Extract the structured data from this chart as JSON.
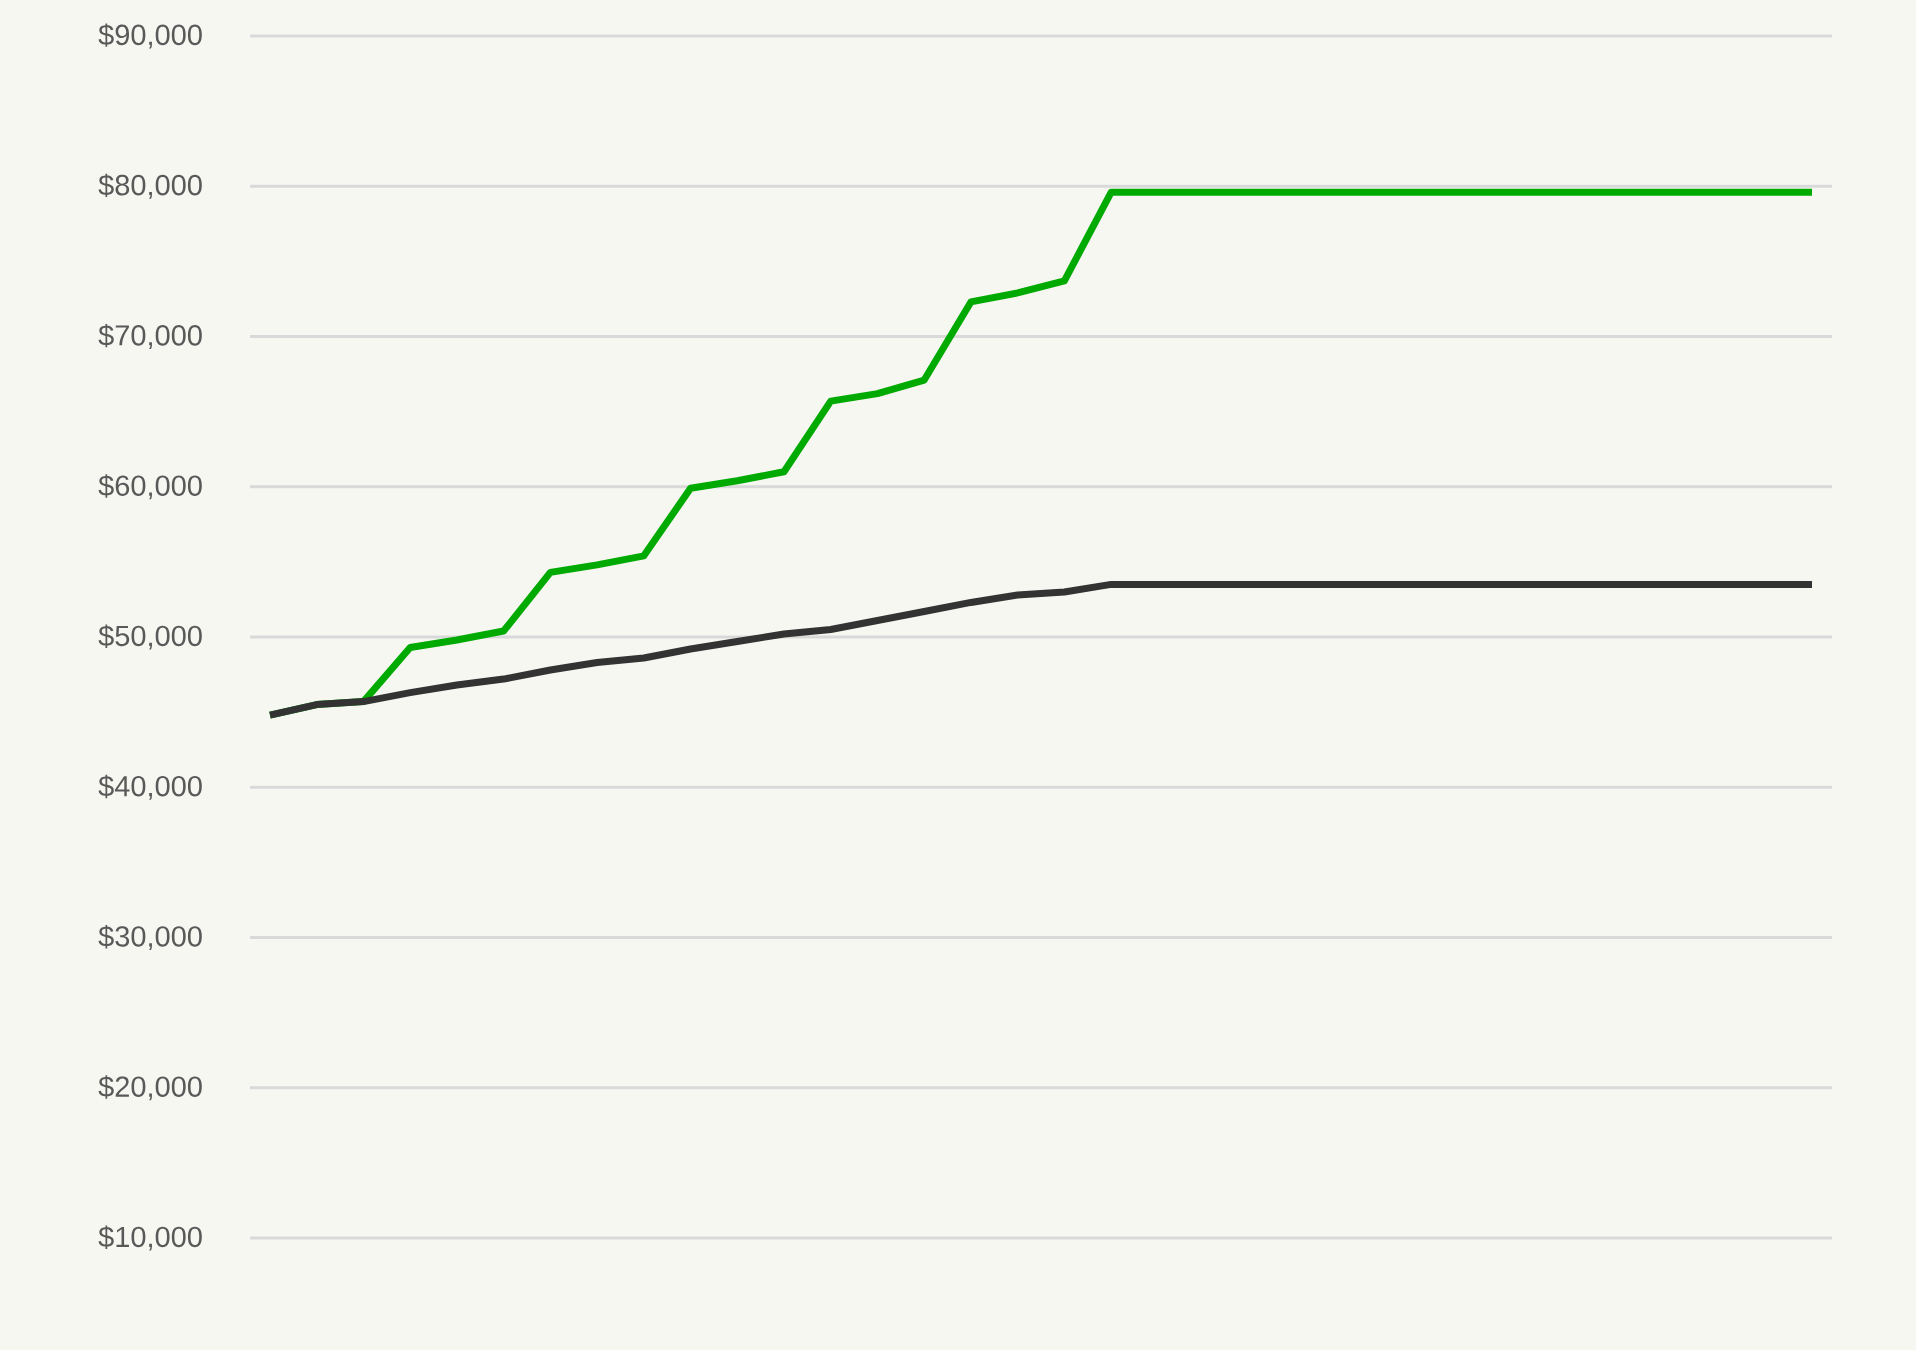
{
  "chart_data": {
    "type": "line",
    "categories": [
      null,
      null,
      null,
      null,
      null,
      null,
      null,
      null,
      null,
      null,
      null,
      null,
      null,
      null,
      null,
      null,
      null,
      null,
      null,
      null,
      null,
      null,
      null,
      null,
      null,
      null,
      null,
      null,
      null,
      null,
      null,
      null,
      null,
      null
    ],
    "series": [
      {
        "color": "#00aa00",
        "values": [
          44800,
          45500,
          45700,
          49300,
          49800,
          50400,
          54300,
          54800,
          55400,
          59900,
          60400,
          61000,
          65700,
          66200,
          67100,
          72300,
          72900,
          73700,
          79600,
          79600,
          79600,
          79600,
          79600,
          79600,
          79600,
          79600,
          79600,
          79600,
          79600,
          79600,
          79600,
          79600,
          79600,
          79600
        ]
      },
      {
        "color": "#333333",
        "values": [
          44800,
          45500,
          45700,
          46300,
          46800,
          47200,
          47800,
          48300,
          48600,
          49200,
          49700,
          50200,
          50500,
          51100,
          51700,
          52300,
          52800,
          53000,
          53500,
          53500,
          53500,
          53500,
          53500,
          53500,
          53500,
          53500,
          53500,
          53500,
          53500,
          53500,
          53500,
          53500,
          53500,
          53500
        ]
      }
    ],
    "ylim": [
      10000,
      90000
    ],
    "yticks": [
      {
        "value": 10000,
        "label": "$10,000"
      },
      {
        "value": 20000,
        "label": "$20,000"
      },
      {
        "value": 30000,
        "label": "$30,000"
      },
      {
        "value": 40000,
        "label": "$40,000"
      },
      {
        "value": 50000,
        "label": "$50,000"
      },
      {
        "value": 60000,
        "label": "$60,000"
      },
      {
        "value": 70000,
        "label": "$70,000"
      },
      {
        "value": 80000,
        "label": "$80,000"
      },
      {
        "value": 90000,
        "label": "$90,000"
      }
    ],
    "grid": "y",
    "marker": "none",
    "line_style": "solid"
  }
}
